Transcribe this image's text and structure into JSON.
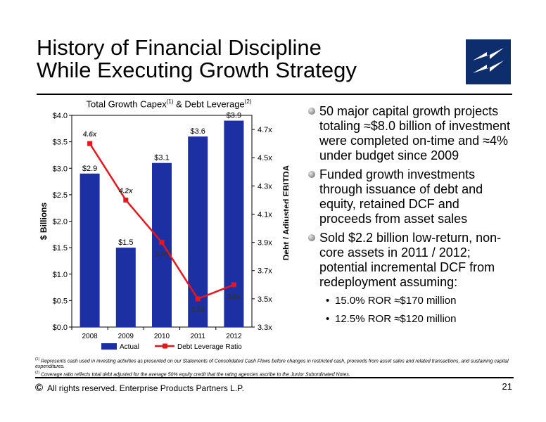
{
  "slide": {
    "title_line1": "History of Financial Discipline",
    "title_line2": "While Executing Growth Strategy",
    "page_number": "21",
    "copyright": "All rights reserved. Enterprise Products Partners L.P.",
    "copyright_symbol": "©"
  },
  "chart_title": {
    "prefix": "Total Growth Capex",
    "note1": "(1)",
    "middle": " & Debt Leverage",
    "note2": "(2)"
  },
  "chart_data": {
    "type": "bar",
    "categories": [
      "2008",
      "2009",
      "2010",
      "2011",
      "2012"
    ],
    "series": [
      {
        "name": "Actual",
        "type": "bar",
        "axis": "left",
        "values": [
          2.9,
          1.5,
          3.1,
          3.6,
          3.9
        ],
        "labels": [
          "$2.9",
          "$1.5",
          "$3.1",
          "$3.6",
          "$3.9"
        ],
        "color": "#1c2fa3"
      },
      {
        "name": "Debt Leverage Ratio",
        "type": "line",
        "axis": "right",
        "values": [
          4.6,
          4.2,
          3.9,
          3.5,
          3.6
        ],
        "labels": [
          "4.6x",
          "4.2x",
          "3.9x",
          "3.5x",
          "3.6x"
        ],
        "color": "#e8161b"
      }
    ],
    "ylabel": "$ Billions",
    "y2label": "Debt / Adjusted EBITDA",
    "ylim": [
      0,
      4.0
    ],
    "y2lim": [
      3.3,
      4.8
    ],
    "yticks": [
      "$0.0",
      "$0.5",
      "$1.0",
      "$1.5",
      "$2.0",
      "$2.5",
      "$3.0",
      "$3.5",
      "$4.0"
    ],
    "y2ticks": [
      "3.3x",
      "3.5x",
      "3.7x",
      "3.9x",
      "4.1x",
      "4.3x",
      "4.5x",
      "4.7x"
    ],
    "legend": [
      "Actual",
      "Debt Leverage Ratio"
    ],
    "legend_position": "bottom"
  },
  "bullets": [
    {
      "text": "50 major capital growth projects totaling ≈$8.0 billion of investment were completed on-time and ≈4% under budget since 2009"
    },
    {
      "text": "Funded growth investments through issuance of debt and equity, retained DCF and proceeds from asset sales"
    },
    {
      "text": "Sold $2.2 billion low-return, non-core assets in 2011 / 2012; potential incremental DCF from redeployment assuming:"
    }
  ],
  "sub_bullets": [
    {
      "text": "15.0% ROR ≈$170 million"
    },
    {
      "text": "12.5% ROR ≈$120 million"
    }
  ],
  "footnotes": [
    {
      "mark": "(1)",
      "text": "Represents cash used in investing activities as presented on our Statements of Consolidated Cash Flows before changes in restricted cash, proceeds from asset sales and related transactions, and sustaining capital expenditures."
    },
    {
      "mark": "(2)",
      "text": "Coverage ratio reflects total debt adjusted for the average 50% equity credit that the rating agencies ascribe to the Junior Subordinated Notes."
    }
  ],
  "colors": {
    "logo_bg": "#0e2d6d",
    "bar": "#1c2fa3",
    "line": "#e8161b"
  }
}
